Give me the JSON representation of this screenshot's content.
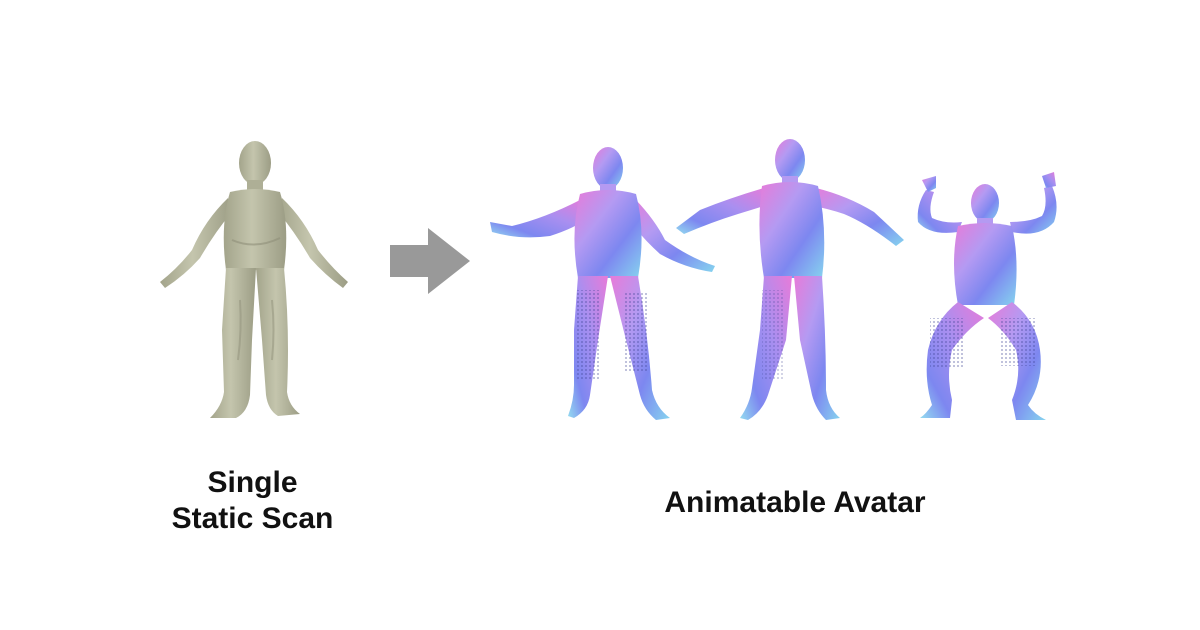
{
  "captions": {
    "left_line1": "Single",
    "left_line2": "Static Scan",
    "right": "Animatable Avatar"
  },
  "colors": {
    "scan": "#b9baa0",
    "scan_shade": "#8f9079",
    "arrow": "#999999",
    "normal_pink": "#e77bd9",
    "normal_blue": "#7d87f0",
    "normal_cyan": "#86d4ef",
    "normal_lilac": "#b49af2"
  },
  "icons": {
    "arrow": "right-arrow-icon"
  }
}
